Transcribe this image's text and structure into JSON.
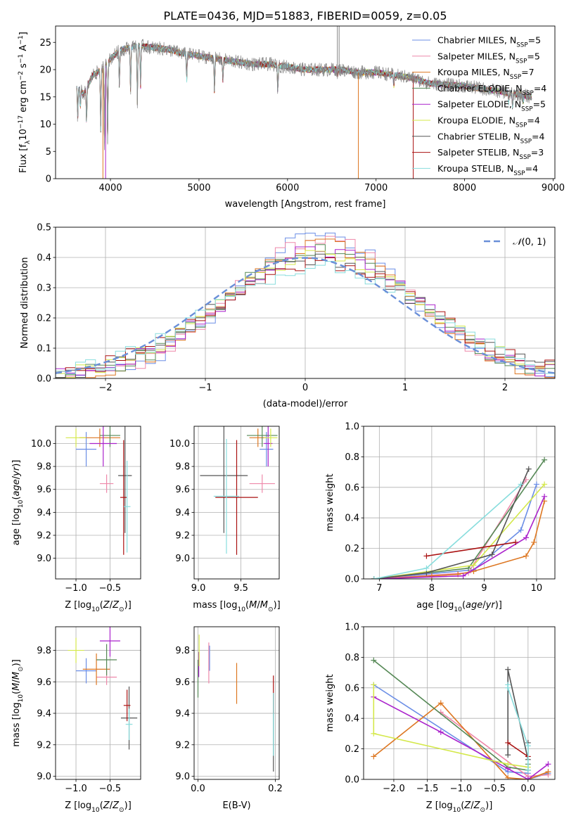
{
  "figure_title": "PLATE=0436, MJD=51883, FIBERID=0059, z=0.05",
  "colors": [
    "#6b8ee6",
    "#ee88aa",
    "#dd7722",
    "#558855",
    "#aa22cc",
    "#d4e84a",
    "#555555",
    "#aa1111",
    "#88dddd"
  ],
  "legend_names": [
    "Chabrier MILES, N<sub>SSP</sub>=5",
    "Salpeter MILES, N<sub>SSP</sub>=5",
    "Kroupa MILES, N<sub>SSP</sub>=7",
    "Chabrier ELODIE, N<sub>SSP</sub>=4",
    "Salpeter ELODIE, N<sub>SSP</sub>=5",
    "Kroupa ELODIE, N<sub>SSP</sub>=4",
    "Chabrier STELIB, N<sub>SSP</sub>=4",
    "Salpeter STELIB, N<sub>SSP</sub>=3",
    "Kroupa STELIB, N<sub>SSP</sub>=4"
  ],
  "chart_data": [
    {
      "type": "line",
      "title": "PLATE=0436, MJD=51883, FIBERID=0059, z=0.05",
      "xlabel": "wavelength [Angstrom, rest frame]",
      "ylabel": "Flux [f_λ 10^-17 erg cm^-2 s^-1 A^-1]",
      "xlim": [
        3380,
        9020
      ],
      "ylim": [
        0,
        28
      ],
      "xticks": [
        4000,
        5000,
        6000,
        7000,
        8000,
        9000
      ],
      "yticks": [
        0,
        5,
        10,
        15,
        20,
        25
      ],
      "grid": false,
      "legend": "top-right",
      "data_continuum": {
        "x": [
          3620,
          3700,
          3800,
          3900,
          4000,
          4100,
          4200,
          4300,
          4400,
          4500,
          4600,
          4700,
          4800,
          5000,
          5200,
          5400,
          5600,
          5800,
          6000,
          6200,
          6400,
          6600,
          6800,
          7000,
          7200,
          7400,
          7600,
          7800,
          8000,
          8200,
          8400,
          8600,
          8760
        ],
        "y": [
          17,
          15.5,
          19,
          20,
          22,
          23.5,
          24,
          24.5,
          24.2,
          24,
          23.8,
          23.5,
          23,
          22.5,
          22,
          21.5,
          21,
          21,
          20.5,
          20,
          20,
          20,
          19.5,
          19.5,
          19,
          18.5,
          17.5,
          17.2,
          17,
          16.5,
          16,
          15.5,
          15
        ]
      },
      "dips": [
        [
          3630,
          11
        ],
        [
          3660,
          13
        ],
        [
          3730,
          10
        ],
        [
          3890,
          9
        ],
        [
          3933,
          6
        ],
        [
          3968,
          7
        ],
        [
          4101,
          17
        ],
        [
          4227,
          16
        ],
        [
          4304,
          14
        ],
        [
          4340,
          17
        ],
        [
          4861,
          18
        ],
        [
          5175,
          16
        ],
        [
          5270,
          18
        ],
        [
          5890,
          16
        ],
        [
          6563,
          19
        ],
        [
          7200,
          17
        ],
        [
          8498,
          14
        ],
        [
          8542,
          13
        ],
        [
          8662,
          14
        ]
      ],
      "data_spikes": [
        6563,
        6583
      ]
    },
    {
      "type": "bar",
      "xlabel": "(data-model)/error",
      "ylabel": "Normed distribution",
      "xlim": [
        -2.5,
        2.5
      ],
      "ylim": [
        0,
        0.5
      ],
      "xticks": [
        -2,
        -1,
        0,
        1,
        2
      ],
      "yticks": [
        0.0,
        0.1,
        0.2,
        0.3,
        0.4,
        0.5
      ],
      "grid": true,
      "legend": "top-right",
      "reference_label": "N(0,1)",
      "bin_width": 0.1
    },
    {
      "type": "scatter",
      "xlabel": "Z [log10(Z/Zsun)]",
      "ylabel": "age [log10(age/yr)]",
      "xlim": [
        -1.3,
        -0.05
      ],
      "ylim": [
        8.82,
        10.15
      ],
      "xticks": [
        -1.0,
        -0.5
      ],
      "yticks": [
        9.0,
        9.2,
        9.4,
        9.6,
        9.8,
        10.0
      ],
      "grid": true,
      "points": [
        {
          "x": -0.85,
          "y": 9.95,
          "xerr": 0.15,
          "yerr": 0.15
        },
        {
          "x": -0.55,
          "y": 9.65,
          "xerr": 0.1,
          "yerr": 0.08
        },
        {
          "x": -0.65,
          "y": 10.05,
          "xerr": 0.3,
          "yerr": 0.08
        },
        {
          "x": -0.5,
          "y": 10.07,
          "xerr": 0.15,
          "yerr": 0.1
        },
        {
          "x": -0.6,
          "y": 10.0,
          "xerr": 0.2,
          "yerr": 0.2
        },
        {
          "x": -1.0,
          "y": 10.05,
          "xerr": 0.15,
          "yerr": 0.08
        },
        {
          "x": -0.28,
          "y": 9.72,
          "xerr": 0.1,
          "yerr": 0.5
        },
        {
          "x": -0.3,
          "y": 9.53,
          "xerr": 0.05,
          "yerr": 0.5
        },
        {
          "x": -0.25,
          "y": 9.45,
          "xerr": 0.05,
          "yerr": 0.4
        }
      ]
    },
    {
      "type": "scatter",
      "xlabel": "mass [log10(M/Msun)]",
      "ylabel": "",
      "xlim": [
        8.95,
        9.95
      ],
      "ylim": [
        8.82,
        10.15
      ],
      "xticks": [
        9.0,
        9.5
      ],
      "yticks": [
        9.0,
        9.2,
        9.4,
        9.6,
        9.8,
        10.0
      ],
      "grid": true,
      "points": [
        {
          "x": 9.8,
          "y": 9.95,
          "xerr": 0.08,
          "yerr": 0.15
        },
        {
          "x": 9.75,
          "y": 9.65,
          "xerr": 0.15,
          "yerr": 0.08
        },
        {
          "x": 9.7,
          "y": 10.05,
          "xerr": 0.1,
          "yerr": 0.08
        },
        {
          "x": 9.75,
          "y": 10.07,
          "xerr": 0.18,
          "yerr": 0.1
        },
        {
          "x": 9.82,
          "y": 10.0,
          "xerr": 0.05,
          "yerr": 0.2
        },
        {
          "x": 9.85,
          "y": 10.05,
          "xerr": 0.08,
          "yerr": 0.08
        },
        {
          "x": 9.3,
          "y": 9.72,
          "xerr": 0.28,
          "yerr": 0.5
        },
        {
          "x": 9.45,
          "y": 9.53,
          "xerr": 0.25,
          "yerr": 0.5
        },
        {
          "x": 9.33,
          "y": 9.54,
          "xerr": 0.15,
          "yerr": 0.5
        }
      ]
    },
    {
      "type": "line",
      "xlabel": "age [log10(age/yr)]",
      "ylabel": "mass weight",
      "xlim": [
        6.7,
        10.35
      ],
      "ylim": [
        0,
        1.0
      ],
      "xticks": [
        7,
        8,
        9,
        10
      ],
      "yticks": [
        0.0,
        0.2,
        0.4,
        0.6,
        0.8,
        1.0
      ],
      "grid": true,
      "series": [
        {
          "x": [
            6.9,
            8.8,
            9.7,
            10.0
          ],
          "y": [
            0.0,
            0.06,
            0.32,
            0.62
          ]
        },
        {
          "x": [
            6.9,
            8.7,
            9.8
          ],
          "y": [
            0.0,
            0.04,
            0.65
          ]
        },
        {
          "x": [
            6.9,
            8.0,
            8.5,
            8.8,
            9.8,
            9.95,
            10.15
          ],
          "y": [
            0.0,
            0.02,
            0.03,
            0.05,
            0.15,
            0.24,
            0.51
          ]
        },
        {
          "x": [
            6.9,
            8.7,
            10.15
          ],
          "y": [
            0.0,
            0.07,
            0.78
          ]
        },
        {
          "x": [
            6.9,
            8.6,
            9.8,
            10.15
          ],
          "y": [
            0.0,
            0.02,
            0.27,
            0.54
          ]
        },
        {
          "x": [
            6.9,
            8.8,
            10.15
          ],
          "y": [
            0.0,
            0.09,
            0.62
          ]
        },
        {
          "x": [
            6.9,
            7.9,
            9.15,
            9.85
          ],
          "y": [
            0.0,
            0.04,
            0.16,
            0.72
          ]
        },
        {
          "x": [
            7.9,
            9.6
          ],
          "y": [
            0.15,
            0.24
          ]
        },
        {
          "x": [
            6.9,
            7.9,
            9.7
          ],
          "y": [
            0.0,
            0.07,
            0.62
          ]
        }
      ]
    },
    {
      "type": "scatter",
      "xlabel": "Z [log10(Z/Zsun)]",
      "ylabel": "mass [log10(M/Msun)]",
      "xlim": [
        -1.3,
        -0.05
      ],
      "ylim": [
        8.98,
        9.95
      ],
      "xticks": [
        -1.0,
        -0.5
      ],
      "yticks": [
        9.0,
        9.2,
        9.4,
        9.6,
        9.8
      ],
      "grid": true,
      "points": [
        {
          "x": -0.85,
          "y": 9.67,
          "xerr": 0.15,
          "yerr": 0.08
        },
        {
          "x": -0.55,
          "y": 9.63,
          "xerr": 0.15,
          "yerr": 0.05
        },
        {
          "x": -0.7,
          "y": 9.68,
          "xerr": 0.2,
          "yerr": 0.1
        },
        {
          "x": -0.55,
          "y": 9.74,
          "xerr": 0.15,
          "yerr": 0.1
        },
        {
          "x": -0.5,
          "y": 9.86,
          "xerr": 0.15,
          "yerr": 0.1
        },
        {
          "x": -1.0,
          "y": 9.8,
          "xerr": 0.12,
          "yerr": 0.08
        },
        {
          "x": -0.22,
          "y": 9.37,
          "xerr": 0.12,
          "yerr": 0.2
        },
        {
          "x": -0.25,
          "y": 9.45,
          "xerr": 0.05,
          "yerr": 0.1
        },
        {
          "x": -0.22,
          "y": 9.33,
          "xerr": 0.05,
          "yerr": 0.1
        }
      ]
    },
    {
      "type": "scatter",
      "xlabel": "E(B-V)",
      "ylabel": "",
      "xlim": [
        -0.01,
        0.21
      ],
      "ylim": [
        8.98,
        9.95
      ],
      "xticks": [
        0.0,
        0.2
      ],
      "yticks": [
        9.0,
        9.2,
        9.4,
        9.6,
        9.8
      ],
      "grid": true,
      "points": [
        {
          "x": 0.03,
          "y": 9.75,
          "yerr": 0.08
        },
        {
          "x": 0.028,
          "y": 9.72,
          "yerr": 0.13
        },
        {
          "x": 0.1,
          "y": 9.59,
          "yerr": 0.13
        },
        {
          "x": 0.0,
          "y": 9.62,
          "yerr": 0.12
        },
        {
          "x": 0.002,
          "y": 9.71,
          "yerr": 0.08
        },
        {
          "x": 0.003,
          "y": 9.8,
          "yerr": 0.1
        },
        {
          "x": 0.195,
          "y": 9.28,
          "yerr": 0.25
        },
        {
          "x": 0.195,
          "y": 9.52,
          "yerr": 0.12
        },
        {
          "x": 0.195,
          "y": 9.33,
          "yerr": 0.2
        }
      ]
    },
    {
      "type": "line",
      "xlabel": "Z [log10(Z/Zsun)]",
      "ylabel": "mass weight",
      "xlim": [
        -2.45,
        0.4
      ],
      "ylim": [
        0,
        1.0
      ],
      "xticks": [
        -2.0,
        -1.5,
        -1.0,
        -0.5,
        0.0
      ],
      "yticks": [
        0.0,
        0.2,
        0.4,
        0.6,
        0.8,
        1.0
      ],
      "grid": true,
      "series": [
        {
          "x": [
            -2.3,
            -0.3,
            0.0,
            0.0,
            0.3
          ],
          "y": [
            0.62,
            0.05,
            0.04,
            0.0,
            0.04
          ]
        },
        {
          "x": [
            -1.3,
            0.0,
            0.3
          ],
          "y": [
            0.44,
            0.02,
            0.03
          ]
        },
        {
          "x": [
            -2.3,
            -1.3,
            -0.3,
            0.0,
            0.3
          ],
          "y": [
            0.15,
            0.5,
            0.01,
            0.0,
            0.05
          ]
        },
        {
          "x": [
            -2.3,
            -0.3,
            0.0,
            0.0
          ],
          "y": [
            0.78,
            0.08,
            0.06,
            0.1
          ]
        },
        {
          "x": [
            -2.3,
            -1.3,
            -0.3,
            0.0,
            0.3
          ],
          "y": [
            0.54,
            0.31,
            0.07,
            0.0,
            0.1
          ]
        },
        {
          "x": [
            -2.3,
            -2.3,
            -0.3,
            0.0
          ],
          "y": [
            0.62,
            0.3,
            0.1,
            0.08
          ]
        },
        {
          "x": [
            -0.3,
            -0.3,
            0.0,
            0.0
          ],
          "y": [
            0.16,
            0.72,
            0.13,
            0.24
          ]
        },
        {
          "x": [
            -0.3,
            0.0
          ],
          "y": [
            0.24,
            0.15
          ]
        },
        {
          "x": [
            -0.3,
            -0.3,
            0.0,
            0.0
          ],
          "y": [
            0.62,
            0.6,
            0.22,
            0.06
          ]
        }
      ]
    }
  ]
}
